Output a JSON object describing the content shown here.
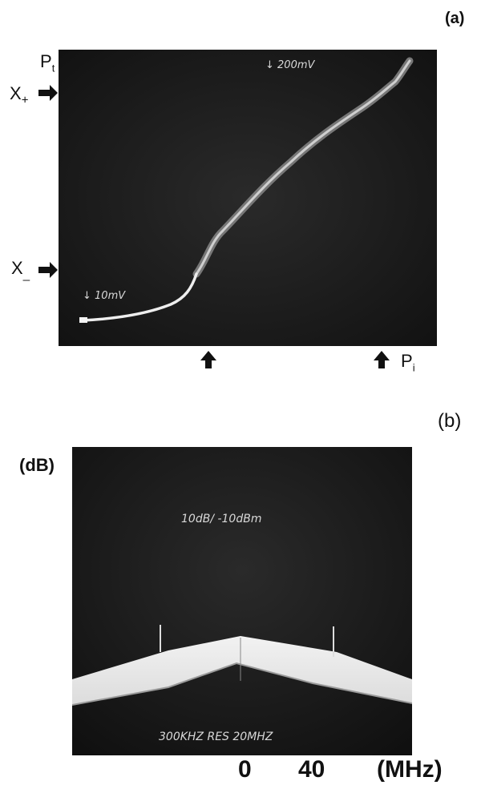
{
  "panel_a": {
    "label": "(a)",
    "y_label": "P",
    "y_label_sub": "t",
    "x_label": "P",
    "x_label_sub": "i",
    "marker_x_plus": "X",
    "marker_x_plus_sub": "+",
    "marker_x_minus": "X",
    "marker_x_minus_sub": "_",
    "scale_top": "↓ 200mV",
    "scale_bottom": "↓ 10mV"
  },
  "panel_b": {
    "label": "(b)",
    "y_label": "(dB)",
    "screen_top": "10dB/   -10dBm",
    "screen_bottom": "300KHZ RES    20MHZ",
    "x_tick_0": "0",
    "x_tick_40": "40",
    "x_unit": "(MHz)"
  },
  "colors": {
    "screen_bg": "#1c1c1c",
    "trace": "#e8e8e8"
  }
}
